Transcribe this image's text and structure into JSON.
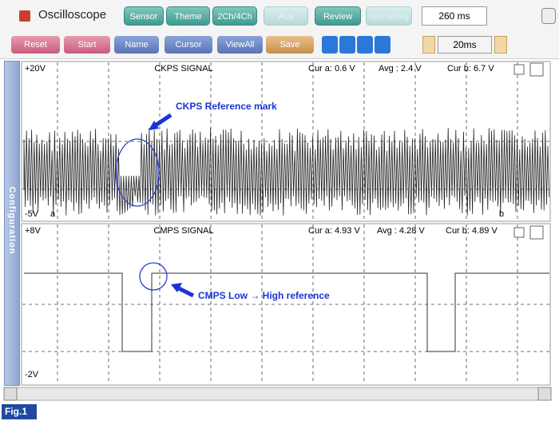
{
  "app": {
    "title": "Oscilloscope",
    "tabs": [
      "Sensor",
      "Theme",
      "2Ch/4Ch",
      "Aux",
      "Review",
      "User Setting"
    ],
    "time_window": "260 ms",
    "buttons": [
      "Reset",
      "Start",
      "Name",
      "Cursor",
      "ViewAll",
      "Save"
    ],
    "time_div": "20ms",
    "side_panel": "Configuration"
  },
  "channels": [
    {
      "max": "+20V",
      "name": "CKPS SIGNAL",
      "cur_a": "Cur a: 0.6 V",
      "avg": "Avg : 2.4 V",
      "cur_b": "Cur b: 6.7 V",
      "min": "-5V",
      "cursor_a": "a",
      "cursor_b": "b",
      "annotation": "CKPS Reference mark"
    },
    {
      "max": "+8V",
      "name": "CMPS SIGNAL",
      "cur_a": "Cur a: 4.93 V",
      "avg": "Avg : 4.28 V",
      "cur_b": "Cur b: 4.89 V",
      "min": "-2V",
      "annotation": "CMPS Low → High reference"
    }
  ],
  "figure_label": "Fig.1"
}
